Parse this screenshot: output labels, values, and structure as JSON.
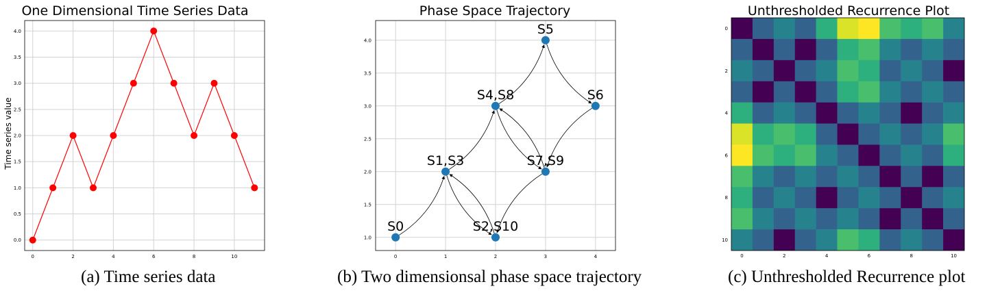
{
  "chart_data": [
    {
      "type": "line",
      "title": "One Dimensional Time Series Data",
      "ylabel": "Time series value",
      "xlabel": "",
      "caption": "(a) Time series data",
      "x": [
        0,
        1,
        2,
        3,
        4,
        5,
        6,
        7,
        8,
        9,
        10,
        11
      ],
      "values": [
        0,
        1,
        2,
        1,
        2,
        3,
        4,
        3,
        2,
        3,
        2,
        1
      ],
      "xlim": [
        -0.4,
        11.5
      ],
      "ylim": [
        -0.2,
        4.2
      ],
      "xticks": [
        "0",
        "2",
        "4",
        "6",
        "8",
        "10"
      ],
      "xtick_values": [
        0,
        2,
        4,
        6,
        8,
        10
      ],
      "yticks": [
        "0.0",
        "0.5",
        "1.0",
        "1.5",
        "2.0",
        "2.5",
        "3.0",
        "3.5",
        "4.0"
      ],
      "ytick_values": [
        0,
        0.5,
        1,
        1.5,
        2,
        2.5,
        3,
        3.5,
        4
      ],
      "color": "#ff0000",
      "grid": true
    },
    {
      "type": "scatter",
      "title": "Phase Space Trajectory",
      "caption": "(b) Two dimensionsal phase space trajectory",
      "points": [
        {
          "label": "S0",
          "x": 0,
          "y": 1
        },
        {
          "label": "S1,S3",
          "x": 1,
          "y": 2
        },
        {
          "label": "S2,S10",
          "x": 2,
          "y": 1
        },
        {
          "label": "S4,S8",
          "x": 2,
          "y": 3
        },
        {
          "label": "S5",
          "x": 3,
          "y": 4
        },
        {
          "label": "S6",
          "x": 4,
          "y": 3
        },
        {
          "label": "S7,S9",
          "x": 3,
          "y": 2
        }
      ],
      "trajectory": [
        [
          0,
          1
        ],
        [
          1,
          2
        ],
        [
          2,
          1
        ],
        [
          1,
          2
        ],
        [
          2,
          3
        ],
        [
          3,
          4
        ],
        [
          4,
          3
        ],
        [
          3,
          2
        ],
        [
          2,
          3
        ],
        [
          3,
          2
        ],
        [
          2,
          1
        ]
      ],
      "xlim": [
        -0.4,
        4.4
      ],
      "ylim": [
        0.8,
        4.3
      ],
      "xticks": [
        "0",
        "1",
        "2",
        "3",
        "4"
      ],
      "xtick_values": [
        0,
        1,
        2,
        3,
        4
      ],
      "yticks": [
        "1.0",
        "1.5",
        "2.0",
        "2.5",
        "3.0",
        "3.5",
        "4.0"
      ],
      "ytick_values": [
        1,
        1.5,
        2,
        2.5,
        3,
        3.5,
        4
      ],
      "color": "#1f77b4",
      "grid": true
    },
    {
      "type": "heatmap",
      "title": "Unthresholded Recurrence Plot",
      "caption": "(c) Unthresholded Recurrence plot",
      "series_values": [
        0,
        1,
        2,
        1,
        2,
        3,
        4,
        3,
        2,
        3,
        2,
        1
      ],
      "size": 11,
      "colormap": "viridis",
      "xticks": [
        "0",
        "2",
        "4",
        "6",
        "8",
        "10"
      ],
      "xtick_values": [
        0,
        2,
        4,
        6,
        8,
        10
      ],
      "yticks": [
        "0",
        "2",
        "4",
        "6",
        "8",
        "10"
      ],
      "ytick_values": [
        0,
        2,
        4,
        6,
        8,
        10
      ]
    }
  ]
}
